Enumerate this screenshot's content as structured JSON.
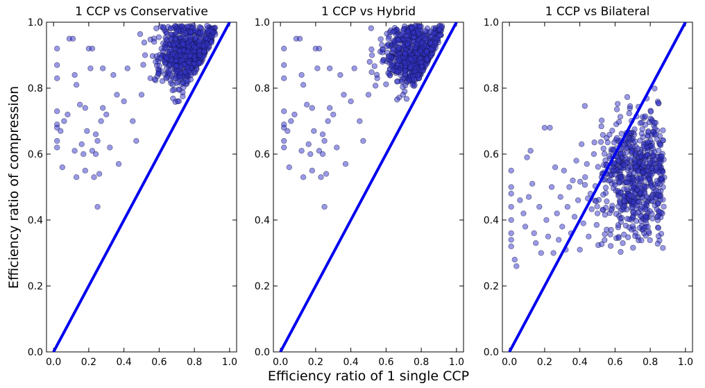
{
  "figure": {
    "xlabel": "Efficiency ratio of 1 single CCP",
    "ylabel": "Efficiency ratio of compression"
  },
  "chart_data": [
    {
      "type": "scatter",
      "title": "1 CCP vs Conservative",
      "xlim": [
        0,
        1
      ],
      "ylim": [
        0,
        1
      ],
      "xticks": [
        "0.0",
        "0.2",
        "0.4",
        "0.6",
        "0.8",
        "1.0"
      ],
      "yticks": [
        "0.0",
        "0.2",
        "0.4",
        "0.6",
        "0.8",
        "1.0"
      ],
      "grid": false,
      "reference_line": {
        "x": [
          0,
          1
        ],
        "y": [
          0,
          1
        ],
        "color": "#0000ee"
      },
      "point_color": "#3333cc",
      "cluster": {
        "center": [
          0.75,
          0.9
        ],
        "spread": [
          0.08,
          0.05
        ]
      },
      "points": [
        [
          0.02,
          0.92
        ],
        [
          0.02,
          0.87
        ],
        [
          0.02,
          0.83
        ],
        [
          0.02,
          0.73
        ],
        [
          0.02,
          0.69
        ],
        [
          0.02,
          0.68
        ],
        [
          0.02,
          0.64
        ],
        [
          0.02,
          0.62
        ],
        [
          0.04,
          0.67
        ],
        [
          0.05,
          0.56
        ],
        [
          0.06,
          0.7
        ],
        [
          0.08,
          0.72
        ],
        [
          0.09,
          0.95
        ],
        [
          0.11,
          0.95
        ],
        [
          0.12,
          0.84
        ],
        [
          0.12,
          0.61
        ],
        [
          0.13,
          0.81
        ],
        [
          0.13,
          0.53
        ],
        [
          0.15,
          0.75
        ],
        [
          0.16,
          0.63
        ],
        [
          0.17,
          0.6
        ],
        [
          0.18,
          0.74
        ],
        [
          0.18,
          0.55
        ],
        [
          0.19,
          0.67
        ],
        [
          0.2,
          0.92
        ],
        [
          0.21,
          0.86
        ],
        [
          0.22,
          0.61
        ],
        [
          0.22,
          0.92
        ],
        [
          0.23,
          0.53
        ],
        [
          0.24,
          0.66
        ],
        [
          0.24,
          0.6
        ],
        [
          0.25,
          0.64
        ],
        [
          0.25,
          0.44
        ],
        [
          0.26,
          0.54
        ],
        [
          0.27,
          0.7
        ],
        [
          0.28,
          0.86
        ],
        [
          0.28,
          0.74
        ],
        [
          0.3,
          0.72
        ],
        [
          0.32,
          0.62
        ],
        [
          0.34,
          0.84
        ],
        [
          0.36,
          0.78
        ],
        [
          0.37,
          0.57
        ],
        [
          0.4,
          0.76
        ],
        [
          0.42,
          0.86
        ],
        [
          0.45,
          0.7
        ],
        [
          0.47,
          0.64
        ],
        [
          0.5,
          0.78
        ],
        [
          0.52,
          0.9
        ],
        [
          0.55,
          0.83
        ],
        [
          0.58,
          0.88
        ]
      ]
    },
    {
      "type": "scatter",
      "title": "1 CCP vs Hybrid",
      "xlim": [
        0,
        1
      ],
      "ylim": [
        0,
        1
      ],
      "xticks": [
        "0.0",
        "0.2",
        "0.4",
        "0.6",
        "0.8",
        "1.0"
      ],
      "yticks": [
        "0.0",
        "0.2",
        "0.4",
        "0.6",
        "0.8",
        "1.0"
      ],
      "grid": false,
      "reference_line": {
        "x": [
          0,
          1
        ],
        "y": [
          0,
          1
        ],
        "color": "#0000ee"
      },
      "point_color": "#3333cc",
      "cluster": {
        "center": [
          0.75,
          0.9
        ],
        "spread": [
          0.08,
          0.05
        ]
      },
      "points": [
        [
          0.02,
          0.92
        ],
        [
          0.02,
          0.87
        ],
        [
          0.02,
          0.83
        ],
        [
          0.02,
          0.73
        ],
        [
          0.02,
          0.69
        ],
        [
          0.02,
          0.68
        ],
        [
          0.02,
          0.64
        ],
        [
          0.02,
          0.62
        ],
        [
          0.04,
          0.67
        ],
        [
          0.05,
          0.56
        ],
        [
          0.06,
          0.7
        ],
        [
          0.08,
          0.72
        ],
        [
          0.09,
          0.95
        ],
        [
          0.11,
          0.95
        ],
        [
          0.12,
          0.84
        ],
        [
          0.12,
          0.61
        ],
        [
          0.13,
          0.81
        ],
        [
          0.13,
          0.53
        ],
        [
          0.15,
          0.75
        ],
        [
          0.16,
          0.63
        ],
        [
          0.17,
          0.6
        ],
        [
          0.18,
          0.74
        ],
        [
          0.18,
          0.55
        ],
        [
          0.19,
          0.67
        ],
        [
          0.2,
          0.92
        ],
        [
          0.21,
          0.86
        ],
        [
          0.22,
          0.61
        ],
        [
          0.22,
          0.92
        ],
        [
          0.23,
          0.53
        ],
        [
          0.24,
          0.66
        ],
        [
          0.24,
          0.6
        ],
        [
          0.25,
          0.64
        ],
        [
          0.25,
          0.44
        ],
        [
          0.26,
          0.54
        ],
        [
          0.27,
          0.7
        ],
        [
          0.28,
          0.86
        ],
        [
          0.28,
          0.74
        ],
        [
          0.3,
          0.72
        ],
        [
          0.32,
          0.62
        ],
        [
          0.34,
          0.84
        ],
        [
          0.36,
          0.78
        ],
        [
          0.37,
          0.57
        ],
        [
          0.4,
          0.76
        ],
        [
          0.42,
          0.86
        ],
        [
          0.45,
          0.7
        ],
        [
          0.47,
          0.64
        ],
        [
          0.5,
          0.78
        ],
        [
          0.52,
          0.9
        ],
        [
          0.55,
          0.83
        ],
        [
          0.58,
          0.88
        ]
      ]
    },
    {
      "type": "scatter",
      "title": "1 CCP vs Bilateral",
      "xlim": [
        0,
        1
      ],
      "ylim": [
        0,
        1
      ],
      "xticks": [
        "0.0",
        "0.2",
        "0.4",
        "0.6",
        "0.8",
        "1.0"
      ],
      "yticks": [
        "0.0",
        "0.2",
        "0.4",
        "0.6",
        "0.8",
        "1.0"
      ],
      "grid": false,
      "reference_line": {
        "x": [
          0,
          1
        ],
        "y": [
          0,
          1
        ],
        "color": "#0000ee"
      },
      "point_color": "#3333cc",
      "cluster": {
        "center": [
          0.72,
          0.54
        ],
        "spread": [
          0.11,
          0.1
        ]
      },
      "points": [
        [
          0.01,
          0.55
        ],
        [
          0.01,
          0.5
        ],
        [
          0.01,
          0.48
        ],
        [
          0.01,
          0.44
        ],
        [
          0.01,
          0.4
        ],
        [
          0.01,
          0.36
        ],
        [
          0.01,
          0.34
        ],
        [
          0.01,
          0.32
        ],
        [
          0.03,
          0.28
        ],
        [
          0.04,
          0.26
        ],
        [
          0.06,
          0.46
        ],
        [
          0.08,
          0.42
        ],
        [
          0.09,
          0.38
        ],
        [
          0.1,
          0.59
        ],
        [
          0.11,
          0.47
        ],
        [
          0.12,
          0.61
        ],
        [
          0.13,
          0.51
        ],
        [
          0.14,
          0.36
        ],
        [
          0.15,
          0.33
        ],
        [
          0.17,
          0.44
        ],
        [
          0.18,
          0.3
        ],
        [
          0.2,
          0.68
        ],
        [
          0.21,
          0.4
        ],
        [
          0.22,
          0.35
        ],
        [
          0.23,
          0.68
        ],
        [
          0.24,
          0.5
        ],
        [
          0.25,
          0.3
        ],
        [
          0.26,
          0.56
        ],
        [
          0.27,
          0.42
        ],
        [
          0.28,
          0.34
        ],
        [
          0.29,
          0.47
        ],
        [
          0.3,
          0.38
        ],
        [
          0.31,
          0.55
        ],
        [
          0.32,
          0.31
        ],
        [
          0.33,
          0.44
        ],
        [
          0.34,
          0.5
        ],
        [
          0.35,
          0.36
        ],
        [
          0.36,
          0.52
        ],
        [
          0.37,
          0.41
        ],
        [
          0.38,
          0.58
        ],
        [
          0.39,
          0.46
        ],
        [
          0.4,
          0.31
        ],
        [
          0.41,
          0.63
        ],
        [
          0.42,
          0.39
        ],
        [
          0.43,
          0.53
        ],
        [
          0.44,
          0.57
        ],
        [
          0.45,
          0.35
        ],
        [
          0.46,
          0.48
        ],
        [
          0.48,
          0.6
        ],
        [
          0.5,
          0.42
        ]
      ]
    }
  ]
}
